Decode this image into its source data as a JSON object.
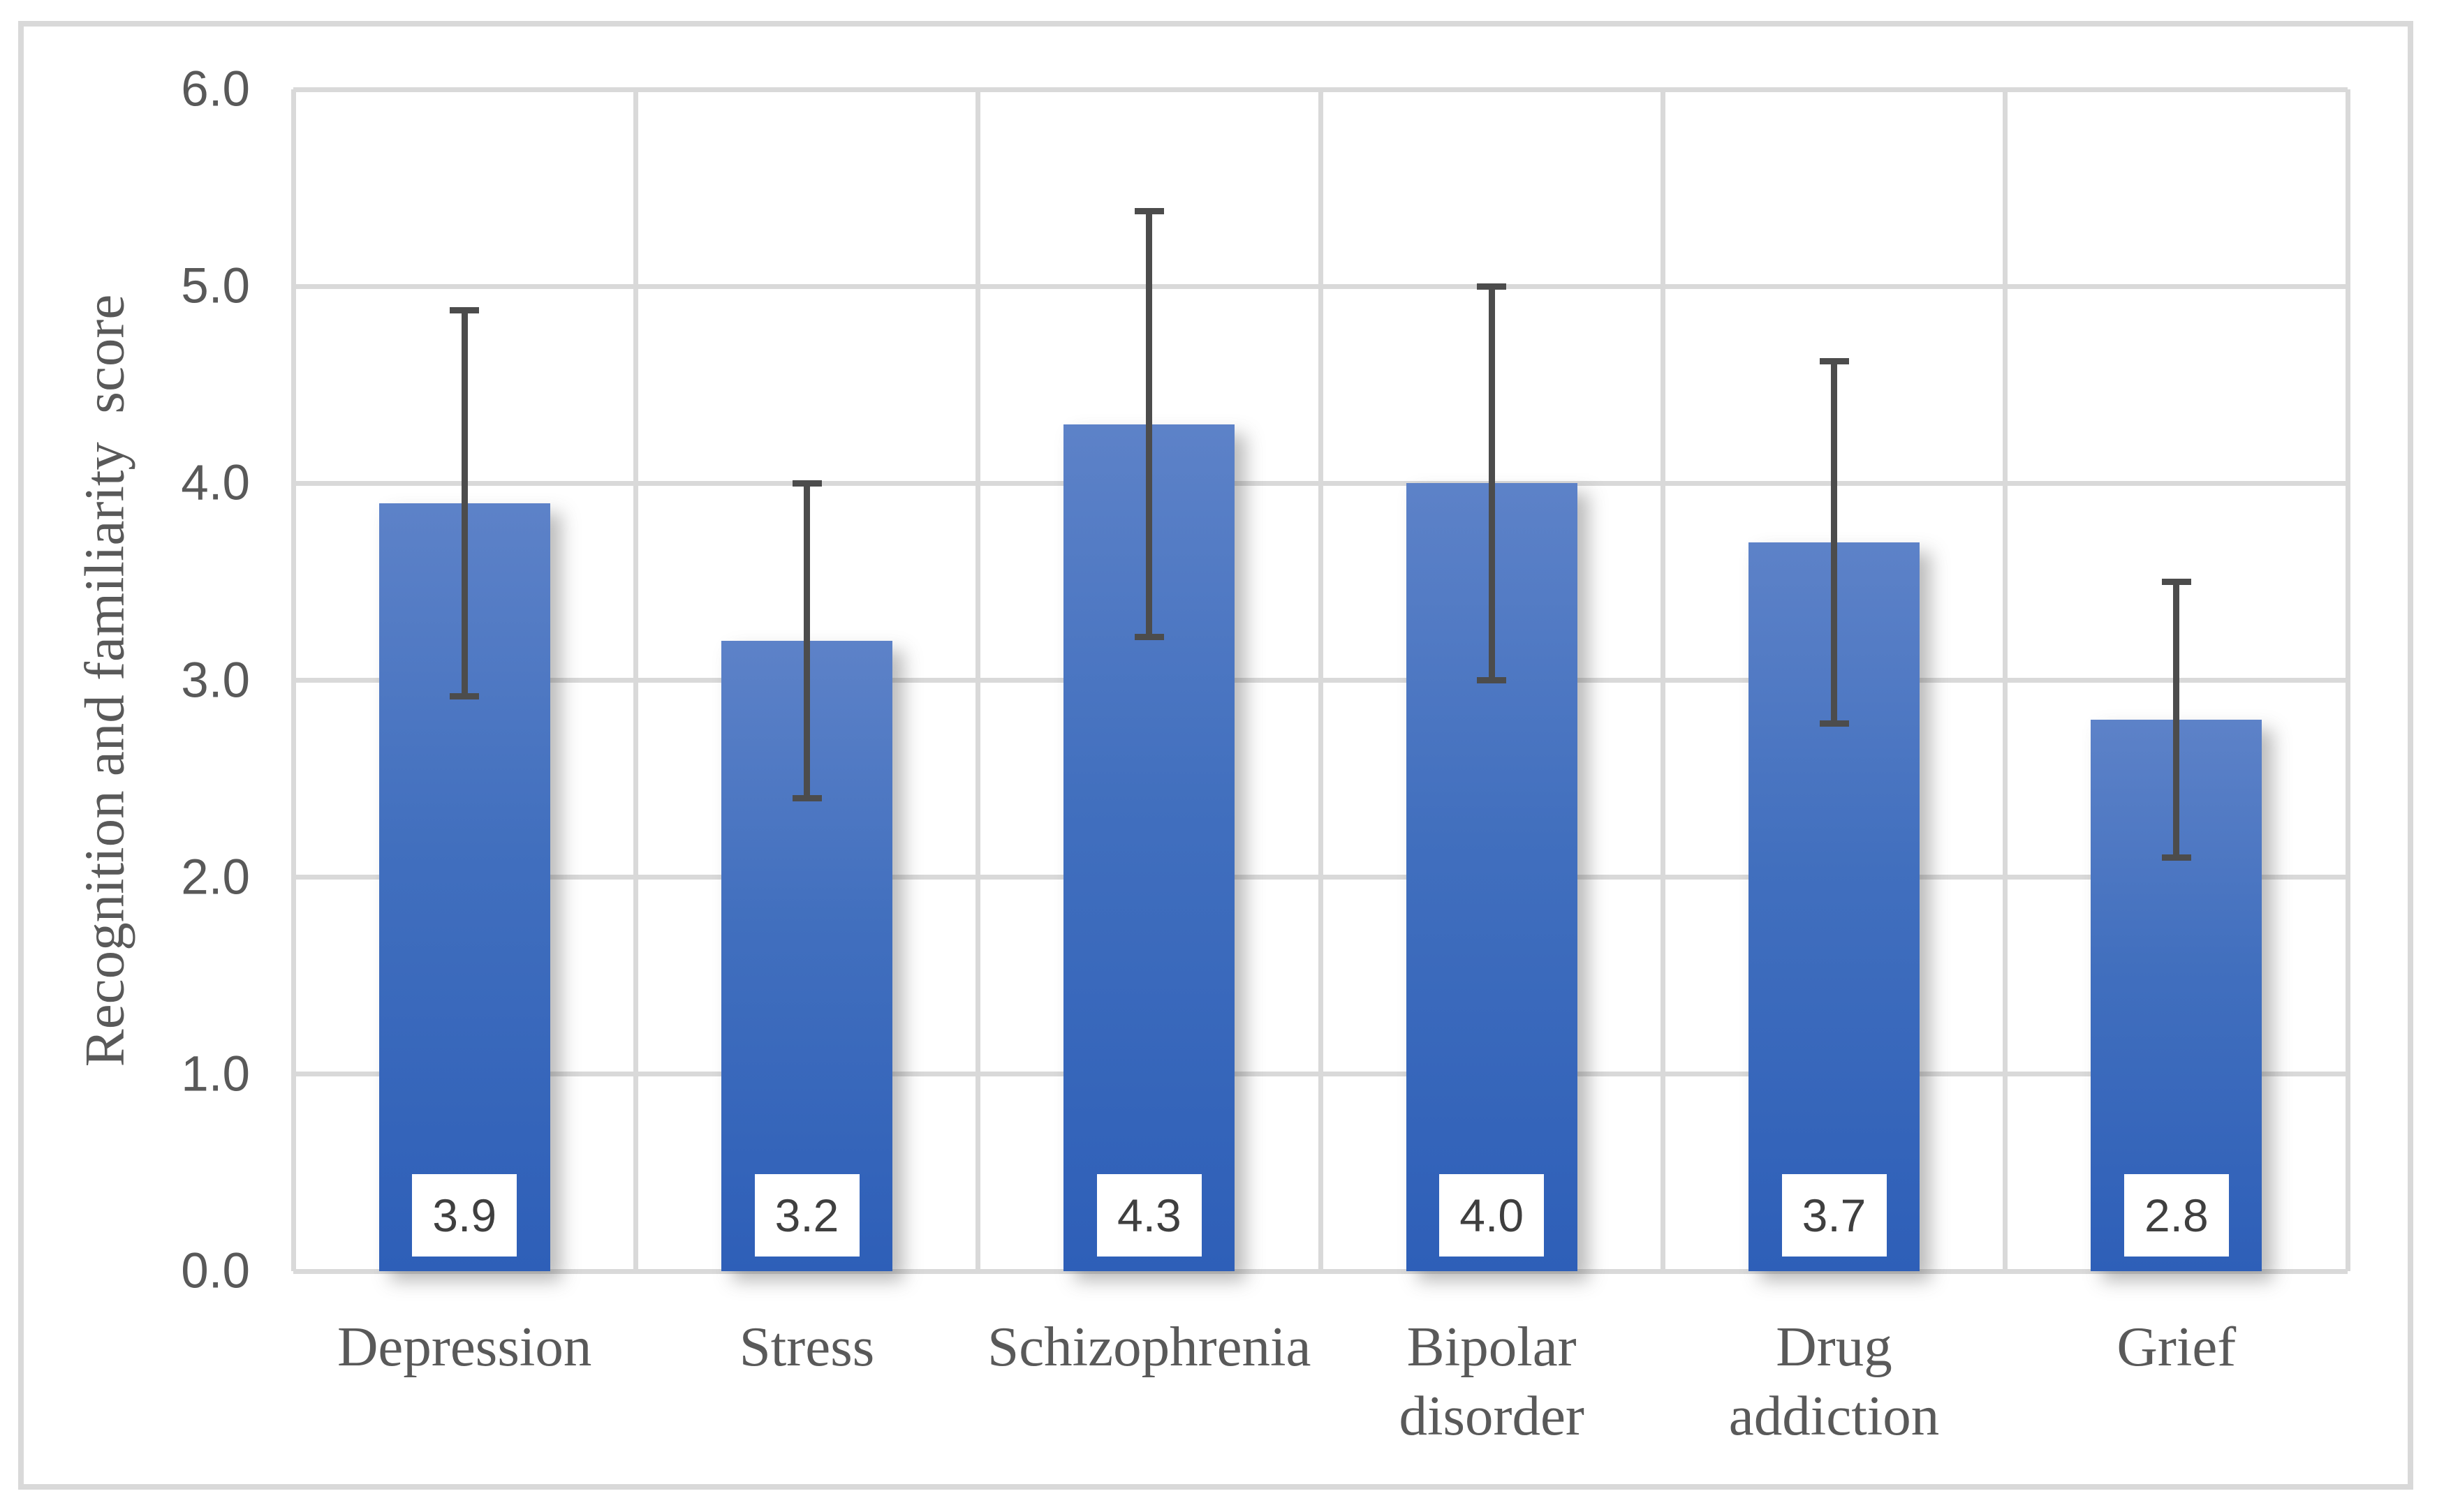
{
  "figure": {
    "background_color": "#ffffff",
    "border_color": "#d9d9d9"
  },
  "chart_data": {
    "type": "bar",
    "title": "",
    "xlabel": "",
    "ylabel": "Recognition and familiarity  score",
    "categories": [
      "Depression",
      "Stress",
      "Schizophrenia",
      "Bipolar\ndisorder",
      "Drug\naddiction",
      "Grief"
    ],
    "values": [
      3.9,
      3.2,
      4.3,
      4.0,
      3.7,
      2.8
    ],
    "data_labels": [
      "3.9",
      "3.2",
      "4.3",
      "4.0",
      "3.7",
      "2.8"
    ],
    "error_bars": [
      {
        "low": 2.92,
        "high": 4.88
      },
      {
        "low": 2.4,
        "high": 4.0
      },
      {
        "low": 3.22,
        "high": 5.38
      },
      {
        "low": 3.0,
        "high": 5.0
      },
      {
        "low": 2.78,
        "high": 4.62
      },
      {
        "low": 2.1,
        "high": 3.5
      }
    ],
    "ylim": [
      0,
      6
    ],
    "yticks": [
      "0.0",
      "1.0",
      "2.0",
      "3.0",
      "4.0",
      "5.0",
      "6.0"
    ],
    "grid": true,
    "legend": "none",
    "colors": {
      "bar_gradient_top": "#5d82c8",
      "bar_gradient_bottom": "#2e5fb8",
      "error_bar": "#4c4c4c",
      "gridline": "#d9d9d9",
      "axis_text": "#595959",
      "data_label_text": "#3f3f3f",
      "data_label_background": "#ffffff"
    }
  }
}
